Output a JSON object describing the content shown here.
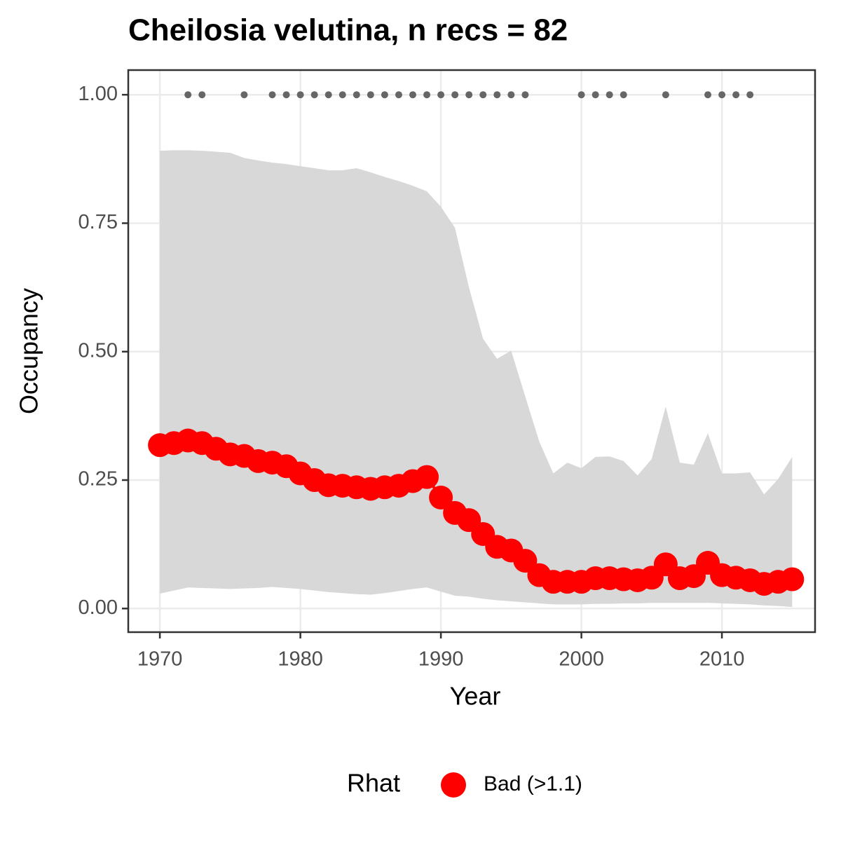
{
  "chart_data": {
    "type": "line",
    "title": "Cheilosia velutina, n recs = 82",
    "x_label": "Year",
    "y_label": "Occupancy",
    "legend_title": "Rhat",
    "x": [
      1970,
      1971,
      1972,
      1973,
      1974,
      1975,
      1976,
      1977,
      1978,
      1979,
      1980,
      1981,
      1982,
      1983,
      1984,
      1985,
      1986,
      1987,
      1988,
      1989,
      1990,
      1991,
      1992,
      1993,
      1994,
      1995,
      1996,
      1997,
      1998,
      1999,
      2000,
      2001,
      2002,
      2003,
      2004,
      2005,
      2006,
      2007,
      2008,
      2009,
      2010,
      2011,
      2012,
      2013,
      2014,
      2015
    ],
    "series": [
      {
        "name": "Bad (>1.1)",
        "color": "#ff0000",
        "values": [
          0.318,
          0.322,
          0.327,
          0.322,
          0.311,
          0.3,
          0.297,
          0.287,
          0.284,
          0.277,
          0.263,
          0.25,
          0.24,
          0.239,
          0.236,
          0.233,
          0.236,
          0.239,
          0.248,
          0.256,
          0.216,
          0.186,
          0.172,
          0.145,
          0.12,
          0.113,
          0.093,
          0.065,
          0.052,
          0.052,
          0.052,
          0.059,
          0.059,
          0.057,
          0.055,
          0.06,
          0.086,
          0.059,
          0.063,
          0.089,
          0.065,
          0.06,
          0.055,
          0.048,
          0.052,
          0.057
        ]
      }
    ],
    "ribbon": {
      "color": "#d6d6d6",
      "upper": [
        0.891,
        0.892,
        0.892,
        0.891,
        0.889,
        0.887,
        0.877,
        0.872,
        0.868,
        0.865,
        0.861,
        0.857,
        0.853,
        0.853,
        0.857,
        0.849,
        0.84,
        0.832,
        0.823,
        0.812,
        0.782,
        0.741,
        0.625,
        0.525,
        0.486,
        0.502,
        0.413,
        0.325,
        0.263,
        0.284,
        0.273,
        0.295,
        0.296,
        0.287,
        0.259,
        0.291,
        0.393,
        0.284,
        0.28,
        0.341,
        0.263,
        0.263,
        0.265,
        0.222,
        0.252,
        0.295
      ],
      "lower": [
        0.029,
        0.035,
        0.041,
        0.04,
        0.039,
        0.038,
        0.039,
        0.04,
        0.042,
        0.04,
        0.038,
        0.035,
        0.032,
        0.03,
        0.028,
        0.027,
        0.03,
        0.034,
        0.038,
        0.041,
        0.033,
        0.025,
        0.023,
        0.019,
        0.016,
        0.014,
        0.012,
        0.01,
        0.008,
        0.008,
        0.008,
        0.009,
        0.009,
        0.01,
        0.01,
        0.011,
        0.011,
        0.011,
        0.011,
        0.011,
        0.01,
        0.009,
        0.008,
        0.006,
        0.005,
        0.003
      ]
    },
    "records": {
      "color": "#666666",
      "x": [
        1972,
        1973,
        1976,
        1978,
        1979,
        1980,
        1981,
        1982,
        1983,
        1984,
        1985,
        1986,
        1987,
        1988,
        1989,
        1990,
        1991,
        1992,
        1993,
        1994,
        1995,
        1996,
        2000,
        2001,
        2002,
        2003,
        2006,
        2009,
        2010,
        2011,
        2012
      ],
      "values": [
        1,
        1,
        1,
        1,
        1,
        1,
        1,
        1,
        1,
        1,
        1,
        1,
        1,
        1,
        1,
        1,
        1,
        1,
        1,
        1,
        1,
        1,
        1,
        1,
        1,
        1,
        1,
        1,
        1,
        1,
        1
      ]
    },
    "xlim": [
      1967.75,
      2016.63
    ],
    "ylim": [
      -0.046,
      1.048
    ],
    "xticks": [
      1970,
      1980,
      1990,
      2000,
      2010
    ],
    "yticks": [
      {
        "value": 0,
        "label": "0.00"
      },
      {
        "value": 0.25,
        "label": "0.25"
      },
      {
        "value": 0.5,
        "label": "0.50"
      },
      {
        "value": 0.75,
        "label": "0.75"
      },
      {
        "value": 1,
        "label": "1.00"
      }
    ],
    "grid": true,
    "legend_position": "bottom"
  }
}
